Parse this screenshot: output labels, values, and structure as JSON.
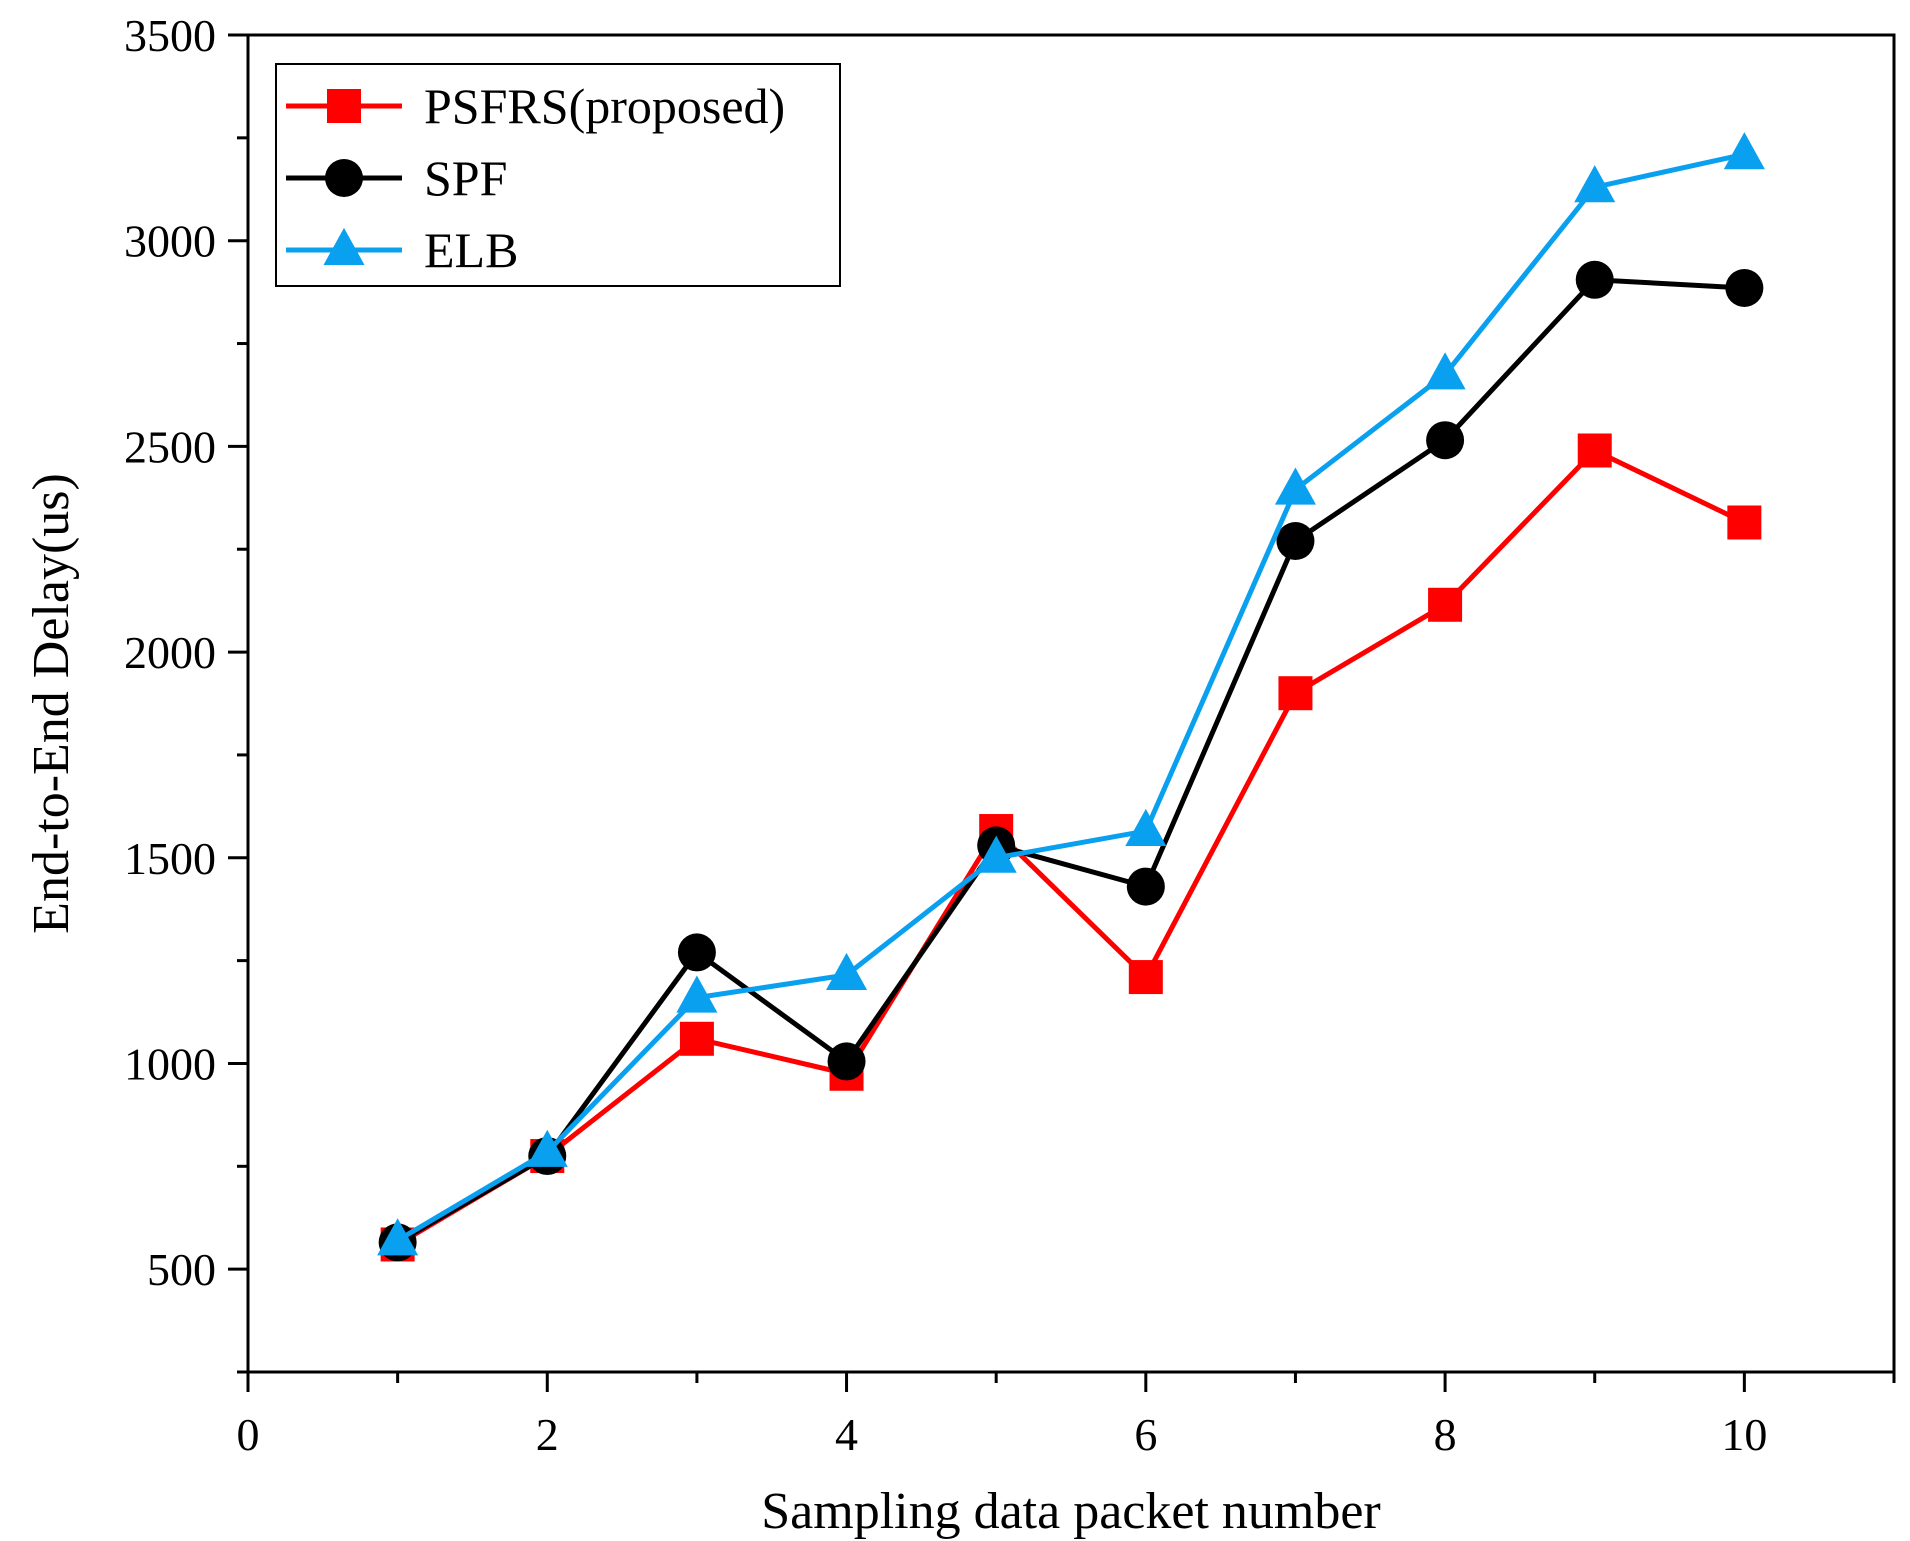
{
  "chart_data": {
    "type": "line",
    "title": "",
    "xlabel": "Sampling data packet number",
    "ylabel": "End-to-End Delay(us)",
    "xlim": [
      0,
      11
    ],
    "ylim": [
      250,
      3500
    ],
    "x_ticks": [
      0,
      2,
      4,
      6,
      8,
      10
    ],
    "x_minor_ticks": [
      1,
      3,
      5,
      7,
      9,
      11
    ],
    "y_ticks": [
      500,
      1000,
      1500,
      2000,
      2500,
      3000,
      3500
    ],
    "legend_position": "top-left",
    "x": [
      1,
      2,
      3,
      4,
      5,
      6,
      7,
      8,
      9,
      10
    ],
    "series": [
      {
        "name": "PSFRS(proposed)",
        "color": "#ff0000",
        "marker": "square",
        "values": [
          560,
          775,
          1060,
          975,
          1565,
          1210,
          1900,
          2115,
          2490,
          2315
        ]
      },
      {
        "name": "SPF",
        "color": "#000000",
        "marker": "circle",
        "values": [
          565,
          775,
          1270,
          1005,
          1530,
          1430,
          2270,
          2515,
          2905,
          2885
        ]
      },
      {
        "name": "ELB",
        "color": "#0aa0f0",
        "marker": "triangle",
        "values": [
          570,
          785,
          1160,
          1215,
          1500,
          1565,
          2395,
          2675,
          3130,
          3210
        ]
      }
    ]
  }
}
